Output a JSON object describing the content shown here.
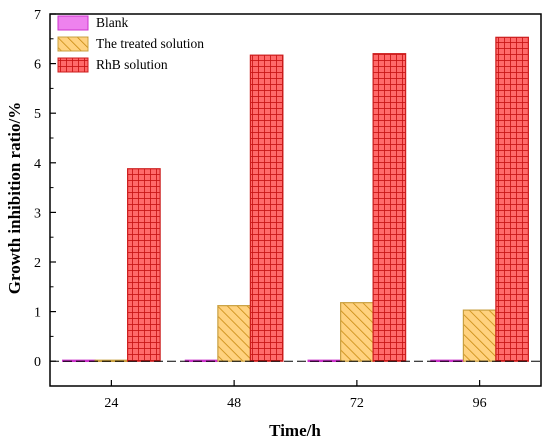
{
  "chart_data": {
    "type": "bar",
    "categories": [
      "24",
      "48",
      "72",
      "96"
    ],
    "series": [
      {
        "name": "Blank",
        "values": [
          0.02,
          0.02,
          0.02,
          0.02
        ],
        "color": "#ee82ee",
        "stroke": "#cc33cc",
        "pattern": "solid"
      },
      {
        "name": "The treated solution",
        "values": [
          0.02,
          1.12,
          1.18,
          1.03
        ],
        "color": "#ffd27f",
        "stroke": "#c9a040",
        "pattern": "hatch"
      },
      {
        "name": "RhB solution",
        "values": [
          3.88,
          6.17,
          6.2,
          6.53
        ],
        "color": "#ff6060",
        "stroke": "#cc1c1c",
        "pattern": "grid"
      }
    ],
    "title": "",
    "xlabel": "Time/h",
    "ylabel": "Growth inhibition ratio/%",
    "ylim": [
      -0.5,
      7
    ],
    "yticks": [
      "0",
      "1",
      "2",
      "3",
      "4",
      "5",
      "6",
      "7"
    ],
    "legend_position": "top-left",
    "grid": false
  }
}
